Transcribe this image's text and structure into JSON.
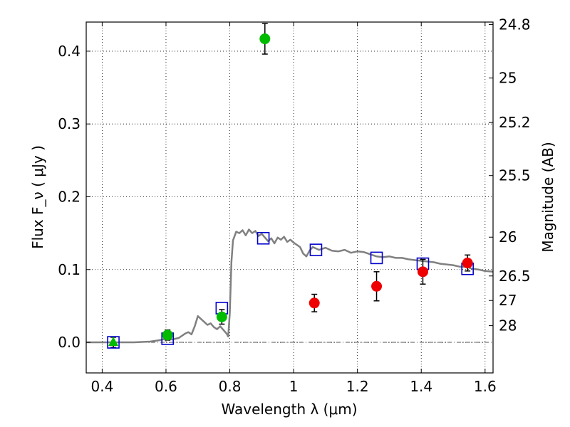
{
  "chart_data": {
    "type": "scatter",
    "xlabel": "Wavelength  λ (μm)",
    "ylabel": "Flux  F_ν  ( μJy )",
    "ylabel_right": "Magnitude (AB)",
    "xlim": [
      0.35,
      1.625
    ],
    "ylim": [
      -0.042,
      0.44
    ],
    "grid": true,
    "x_ticks": [
      0.4,
      0.6,
      0.8,
      1.0,
      1.2,
      1.4,
      1.6
    ],
    "x_tick_labels": [
      "0.4",
      "0.6",
      "0.8",
      "1",
      "1.2",
      "1.4",
      "1.6"
    ],
    "y_ticks": [
      0.0,
      0.1,
      0.2,
      0.3,
      0.4
    ],
    "y_tick_labels": [
      "0.0",
      "0.1",
      "0.2",
      "0.3",
      "0.4"
    ],
    "right_ticks": [
      {
        "label": "24.8",
        "flux": 0.4365
      },
      {
        "label": "25",
        "flux": 0.3631
      },
      {
        "label": "25.2",
        "flux": 0.302
      },
      {
        "label": "25.5",
        "flux": 0.2291
      },
      {
        "label": "26",
        "flux": 0.1445
      },
      {
        "label": "26.5",
        "flux": 0.0912
      },
      {
        "label": "27",
        "flux": 0.0575
      },
      {
        "label": "28",
        "flux": 0.0229
      }
    ],
    "series": [
      {
        "marker": "line",
        "color": "#808080",
        "points": [
          [
            0.35,
            0.0
          ],
          [
            0.5,
            0.0
          ],
          [
            0.55,
            0.001
          ],
          [
            0.58,
            0.003
          ],
          [
            0.6,
            0.005
          ],
          [
            0.62,
            0.004
          ],
          [
            0.64,
            0.006
          ],
          [
            0.66,
            0.012
          ],
          [
            0.67,
            0.014
          ],
          [
            0.68,
            0.011
          ],
          [
            0.69,
            0.022
          ],
          [
            0.7,
            0.036
          ],
          [
            0.71,
            0.032
          ],
          [
            0.72,
            0.028
          ],
          [
            0.73,
            0.024
          ],
          [
            0.74,
            0.026
          ],
          [
            0.75,
            0.021
          ],
          [
            0.76,
            0.018
          ],
          [
            0.77,
            0.022
          ],
          [
            0.78,
            0.017
          ],
          [
            0.79,
            0.012
          ],
          [
            0.795,
            0.008
          ],
          [
            0.8,
            0.04
          ],
          [
            0.805,
            0.11
          ],
          [
            0.81,
            0.14
          ],
          [
            0.82,
            0.152
          ],
          [
            0.83,
            0.15
          ],
          [
            0.84,
            0.154
          ],
          [
            0.85,
            0.147
          ],
          [
            0.86,
            0.155
          ],
          [
            0.87,
            0.15
          ],
          [
            0.88,
            0.153
          ],
          [
            0.89,
            0.146
          ],
          [
            0.9,
            0.149
          ],
          [
            0.92,
            0.139
          ],
          [
            0.93,
            0.143
          ],
          [
            0.94,
            0.136
          ],
          [
            0.95,
            0.144
          ],
          [
            0.96,
            0.141
          ],
          [
            0.97,
            0.145
          ],
          [
            0.98,
            0.138
          ],
          [
            0.99,
            0.141
          ],
          [
            1.0,
            0.137
          ],
          [
            1.02,
            0.131
          ],
          [
            1.03,
            0.122
          ],
          [
            1.04,
            0.118
          ],
          [
            1.05,
            0.126
          ],
          [
            1.06,
            0.131
          ],
          [
            1.08,
            0.127
          ],
          [
            1.1,
            0.13
          ],
          [
            1.12,
            0.126
          ],
          [
            1.14,
            0.125
          ],
          [
            1.16,
            0.127
          ],
          [
            1.18,
            0.123
          ],
          [
            1.2,
            0.125
          ],
          [
            1.22,
            0.124
          ],
          [
            1.24,
            0.121
          ],
          [
            1.26,
            0.118
          ],
          [
            1.28,
            0.117
          ],
          [
            1.3,
            0.118
          ],
          [
            1.32,
            0.116
          ],
          [
            1.34,
            0.116
          ],
          [
            1.36,
            0.114
          ],
          [
            1.38,
            0.113
          ],
          [
            1.4,
            0.112
          ],
          [
            1.42,
            0.111
          ],
          [
            1.44,
            0.11
          ],
          [
            1.46,
            0.108
          ],
          [
            1.48,
            0.107
          ],
          [
            1.5,
            0.106
          ],
          [
            1.52,
            0.104
          ],
          [
            1.54,
            0.104
          ],
          [
            1.56,
            0.101
          ],
          [
            1.58,
            0.1
          ],
          [
            1.6,
            0.098
          ],
          [
            1.625,
            0.097
          ]
        ]
      },
      {
        "marker": "open-square",
        "color": "#0000cc",
        "points": [
          [
            0.435,
            0.0
          ],
          [
            0.605,
            0.005
          ],
          [
            0.775,
            0.047
          ],
          [
            0.905,
            0.143
          ],
          [
            1.07,
            0.127
          ],
          [
            1.26,
            0.116
          ],
          [
            1.405,
            0.108
          ],
          [
            1.545,
            0.101
          ]
        ]
      },
      {
        "marker": "filled-circle",
        "color": "#00bb00",
        "points": [
          {
            "x": 0.605,
            "y": 0.01,
            "err": 0.007
          },
          {
            "x": 0.775,
            "y": 0.035,
            "err": 0.01
          },
          {
            "x": 0.91,
            "y": 0.417,
            "err": 0.021
          }
        ]
      },
      {
        "marker": "filled-triangle",
        "color": "#00bb00",
        "points": [
          {
            "x": 0.435,
            "y": 0.0,
            "err": 0.007
          }
        ]
      },
      {
        "marker": "filled-circle",
        "color": "#ee0000",
        "points": [
          {
            "x": 1.065,
            "y": 0.054,
            "err": 0.012
          },
          {
            "x": 1.26,
            "y": 0.077,
            "err": 0.02
          },
          {
            "x": 1.405,
            "y": 0.097,
            "err": 0.017
          },
          {
            "x": 1.545,
            "y": 0.109,
            "err": 0.011
          }
        ]
      }
    ],
    "reference_line": {
      "y": 0.0,
      "style": "dash-dot",
      "color": "#555555"
    }
  }
}
